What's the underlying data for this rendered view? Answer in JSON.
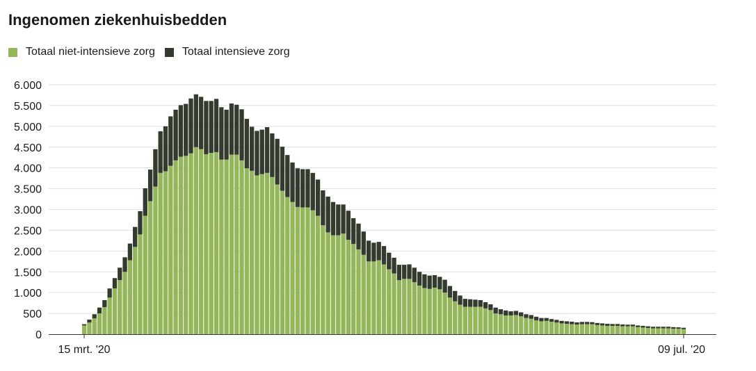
{
  "title": "Ingenomen ziekenhuisbedden",
  "legend": [
    {
      "label": "Totaal niet-intensieve zorg",
      "color": "#95b75c"
    },
    {
      "label": "Totaal intensieve zorg",
      "color": "#333a2e"
    }
  ],
  "chart_data": {
    "type": "bar",
    "stacked": true,
    "title": "Ingenomen ziekenhuisbedden",
    "xlabel": "",
    "ylabel": "",
    "ylim": [
      0,
      6000
    ],
    "yticks": [
      0,
      500,
      1000,
      1500,
      2000,
      2500,
      3000,
      3500,
      4000,
      4500,
      5000,
      5500,
      6000
    ],
    "ytick_labels": [
      "0",
      "500",
      "1.000",
      "1.500",
      "2.000",
      "2.500",
      "3.000",
      "3.500",
      "4.000",
      "4.500",
      "5.000",
      "5.500",
      "6.000"
    ],
    "x_start_label": "15 mrt. '20",
    "x_end_label": "09 jul. '20",
    "grid": true,
    "legend_position": "top-left",
    "series": [
      {
        "name": "Totaal niet-intensieve zorg",
        "color": "#95b75c",
        "values": [
          210,
          280,
          380,
          500,
          650,
          880,
          1100,
          1300,
          1500,
          1780,
          2100,
          2400,
          2850,
          3200,
          3550,
          3880,
          3920,
          4050,
          4180,
          4270,
          4290,
          4350,
          4500,
          4450,
          4330,
          4360,
          4380,
          4200,
          4200,
          4320,
          4320,
          4180,
          3990,
          3930,
          3820,
          3850,
          3880,
          3780,
          3600,
          3450,
          3300,
          3180,
          3060,
          3050,
          3050,
          2980,
          2850,
          2620,
          2450,
          2380,
          2380,
          2420,
          2270,
          2170,
          2040,
          1910,
          1750,
          1750,
          1780,
          1680,
          1560,
          1460,
          1300,
          1330,
          1330,
          1250,
          1170,
          1110,
          1090,
          1120,
          1080,
          1000,
          880,
          790,
          710,
          660,
          660,
          660,
          660,
          620,
          580,
          500,
          480,
          450,
          450,
          460,
          430,
          390,
          370,
          330,
          310,
          320,
          300,
          280,
          260,
          250,
          240,
          230,
          240,
          240,
          240,
          220,
          210,
          200,
          200,
          200,
          190,
          190,
          190,
          170,
          160,
          150,
          140,
          140,
          140,
          140,
          130,
          130,
          120
        ]
      },
      {
        "name": "Totaal intensieve zorg",
        "color": "#333a2e",
        "values": [
          30,
          70,
          100,
          140,
          170,
          220,
          250,
          300,
          350,
          400,
          480,
          560,
          660,
          760,
          900,
          1000,
          1080,
          1190,
          1220,
          1240,
          1250,
          1320,
          1270,
          1260,
          1280,
          1250,
          1280,
          1260,
          1200,
          1230,
          1200,
          1230,
          1190,
          1060,
          1070,
          1070,
          1100,
          1050,
          1100,
          1060,
          1010,
          950,
          930,
          920,
          920,
          900,
          870,
          840,
          860,
          800,
          740,
          700,
          700,
          620,
          620,
          560,
          500,
          450,
          440,
          440,
          400,
          380,
          370,
          340,
          350,
          350,
          330,
          330,
          320,
          300,
          300,
          310,
          280,
          250,
          220,
          190,
          180,
          170,
          160,
          150,
          140,
          140,
          120,
          120,
          100,
          100,
          95,
          90,
          90,
          90,
          80,
          70,
          65,
          65,
          60,
          60,
          60,
          55,
          55,
          55,
          50,
          50,
          50,
          50,
          45,
          45,
          45,
          40,
          40,
          40,
          40,
          40,
          40,
          40,
          40,
          40,
          40,
          35,
          35
        ]
      }
    ]
  }
}
